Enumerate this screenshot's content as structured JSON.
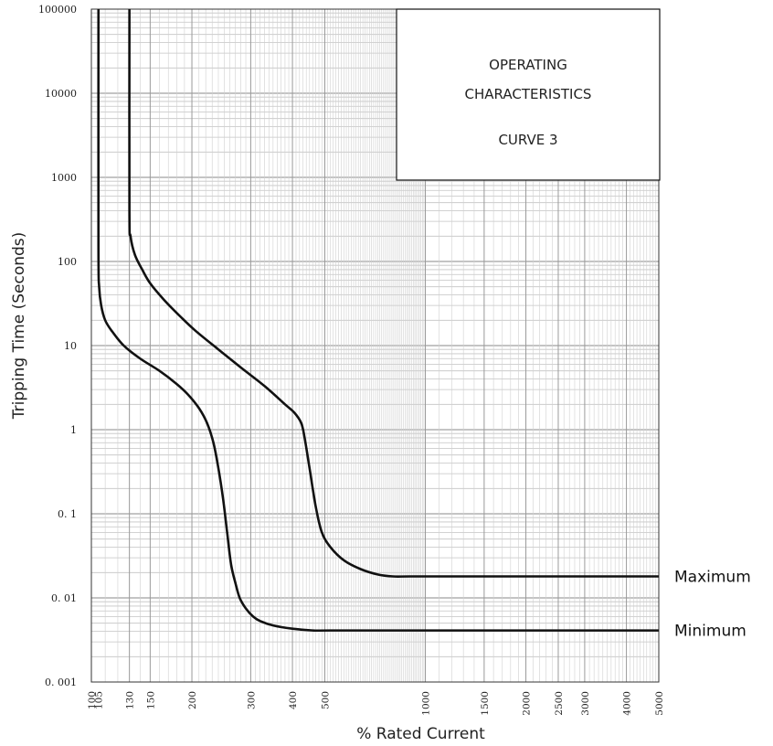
{
  "chart_data": {
    "type": "line",
    "title_box": [
      "OPERATING",
      "CHARACTERISTICS",
      "CURVE 3"
    ],
    "xlabel": "% Rated Current",
    "ylabel": "Tripping Time (Seconds)",
    "x_scale": "log",
    "y_scale": "log",
    "xlim": [
      100,
      5000
    ],
    "ylim": [
      0.001,
      100000
    ],
    "grid": true,
    "x_ticks": [
      {
        "value": 100,
        "label": "100"
      },
      {
        "value": 105,
        "label": "105"
      },
      {
        "value": 130,
        "label": "130"
      },
      {
        "value": 150,
        "label": "150"
      },
      {
        "value": 200,
        "label": "200"
      },
      {
        "value": 300,
        "label": "300"
      },
      {
        "value": 400,
        "label": "400"
      },
      {
        "value": 500,
        "label": "500"
      },
      {
        "value": 1000,
        "label": "1000"
      },
      {
        "value": 1500,
        "label": "1500"
      },
      {
        "value": 2000,
        "label": "2000"
      },
      {
        "value": 2500,
        "label": "2500"
      },
      {
        "value": 3000,
        "label": "3000"
      },
      {
        "value": 4000,
        "label": "4000"
      },
      {
        "value": 5000,
        "label": "5000"
      }
    ],
    "y_ticks": [
      {
        "value": 100000,
        "label": "100000"
      },
      {
        "value": 10000,
        "label": "10000"
      },
      {
        "value": 1000,
        "label": "1000"
      },
      {
        "value": 100,
        "label": "100"
      },
      {
        "value": 10,
        "label": "10"
      },
      {
        "value": 1,
        "label": "1"
      },
      {
        "value": 0.1,
        "label": "0. 1"
      },
      {
        "value": 0.01,
        "label": "0. 01"
      },
      {
        "value": 0.001,
        "label": "0. 001"
      }
    ],
    "series": [
      {
        "name": "Maximum",
        "x": [
          130,
          130,
          131,
          135,
          142,
          150,
          165,
          185,
          205,
          240,
          280,
          330,
          380,
          405,
          425,
          435,
          450,
          470,
          490,
          520,
          570,
          640,
          720,
          800,
          900,
          1200,
          2000,
          5000
        ],
        "y": [
          100000,
          400,
          200,
          120,
          80,
          55,
          35,
          22,
          15,
          9,
          5.5,
          3.3,
          2.0,
          1.6,
          1.2,
          0.8,
          0.35,
          0.12,
          0.06,
          0.04,
          0.028,
          0.022,
          0.019,
          0.018,
          0.018,
          0.018,
          0.018,
          0.018
        ]
      },
      {
        "name": "Minimum",
        "x": [
          105,
          105,
          105.5,
          107,
          110,
          115,
          125,
          140,
          160,
          180,
          195,
          210,
          222,
          232,
          240,
          248,
          255,
          262,
          270,
          278,
          290,
          305,
          320,
          350,
          400,
          460,
          520,
          1000,
          5000
        ],
        "y": [
          100000,
          150,
          50,
          30,
          20,
          15,
          10,
          7,
          5,
          3.5,
          2.6,
          1.8,
          1.2,
          0.7,
          0.35,
          0.15,
          0.06,
          0.025,
          0.015,
          0.01,
          0.0075,
          0.006,
          0.0053,
          0.0047,
          0.0043,
          0.0041,
          0.0041,
          0.0041,
          0.0041
        ]
      }
    ]
  }
}
